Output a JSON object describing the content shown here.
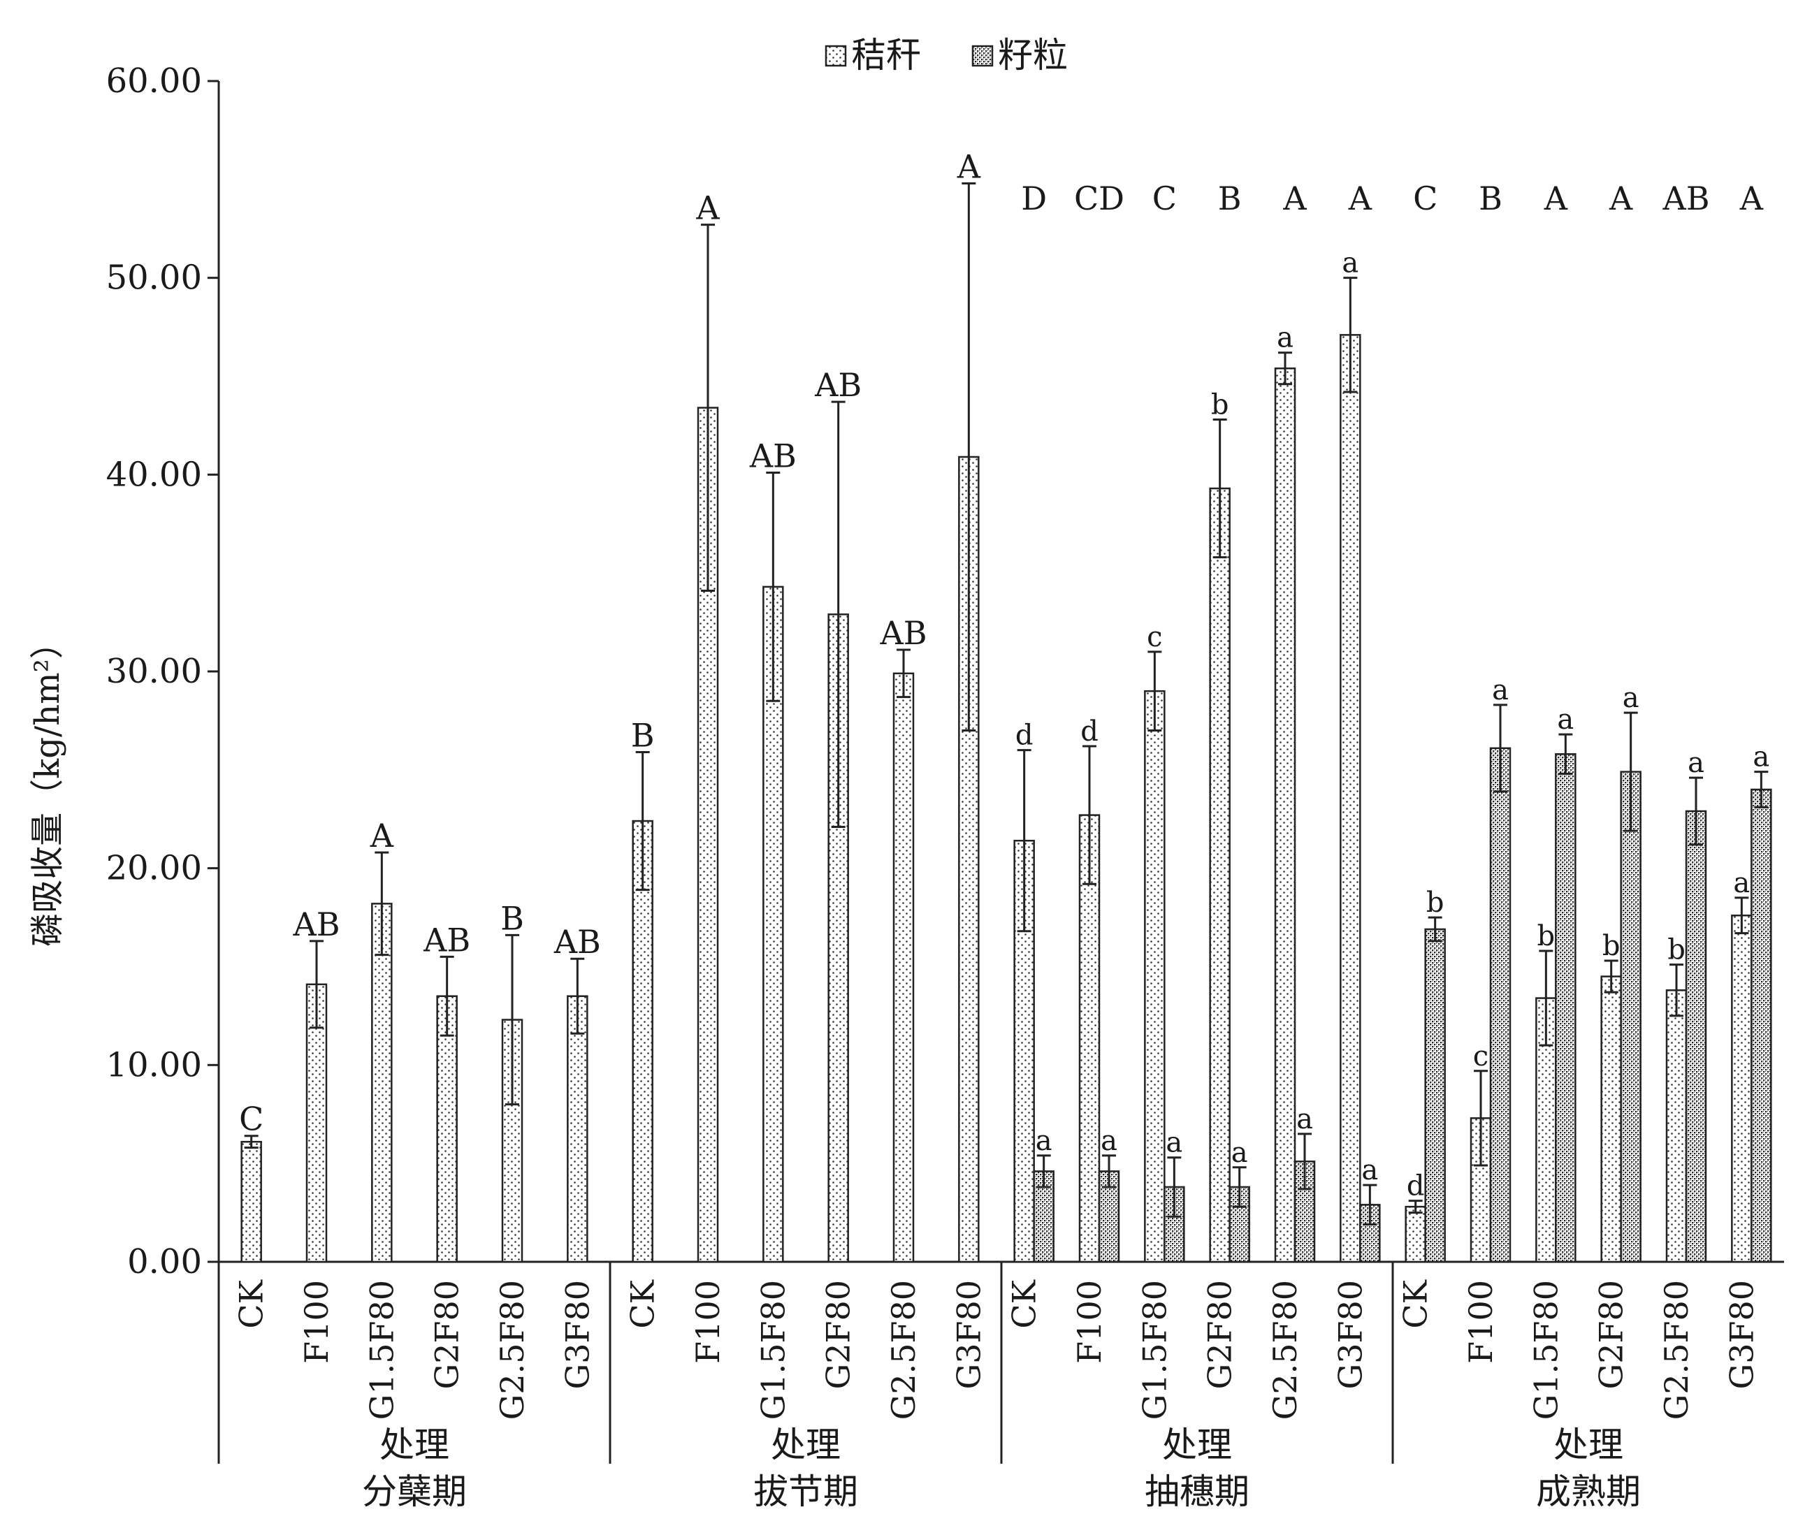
{
  "chart_data": {
    "type": "bar",
    "legend": {
      "position": "top-center",
      "items": [
        {
          "label": "秸秆",
          "pattern": "sparse-dots"
        },
        {
          "label": "籽粒",
          "pattern": "dense-crosshatch"
        }
      ]
    },
    "ylabel": "磷吸收量（kg/hm²）",
    "ylim": [
      0,
      60
    ],
    "yticks": [
      "0.00",
      "10.00",
      "20.00",
      "30.00",
      "40.00",
      "50.00",
      "60.00"
    ],
    "grid": false,
    "groups": [
      {
        "xlabel": "处理",
        "stage": "分蘖期",
        "categories": [
          "CK",
          "F100",
          "G1.5F80",
          "G2F80",
          "G2.5F80",
          "G3F80"
        ],
        "series": [
          {
            "name": "秸秆",
            "values": [
              6.1,
              14.1,
              18.2,
              13.5,
              12.3,
              13.5
            ],
            "errors": [
              0.3,
              2.2,
              2.6,
              2.0,
              4.3,
              1.9
            ],
            "labels": [
              "C",
              "AB",
              "A",
              "AB",
              "B",
              "AB"
            ]
          }
        ],
        "group_labels": []
      },
      {
        "xlabel": "处理",
        "stage": "拔节期",
        "categories": [
          "CK",
          "F100",
          "G1.5F80",
          "G2F80",
          "G2.5F80",
          "G3F80"
        ],
        "series": [
          {
            "name": "秸秆",
            "values": [
              22.4,
              43.4,
              34.3,
              32.9,
              29.9,
              40.9
            ],
            "errors": [
              3.5,
              9.3,
              5.8,
              10.8,
              1.2,
              13.9
            ],
            "labels": [
              "B",
              "A",
              "AB",
              "AB",
              "AB",
              "A"
            ]
          }
        ],
        "group_labels": []
      },
      {
        "xlabel": "处理",
        "stage": "抽穗期",
        "categories": [
          "CK",
          "F100",
          "G1.5F80",
          "G2F80",
          "G2.5F80",
          "G3F80"
        ],
        "series": [
          {
            "name": "秸秆",
            "values": [
              21.4,
              22.7,
              29.0,
              39.3,
              45.4,
              47.1
            ],
            "errors": [
              4.6,
              3.5,
              2.0,
              3.5,
              0.8,
              2.9
            ],
            "labels": [
              "d",
              "d",
              "c",
              "b",
              "a",
              "a"
            ]
          },
          {
            "name": "籽粒",
            "values": [
              4.6,
              4.6,
              3.8,
              3.8,
              5.1,
              2.9
            ],
            "errors": [
              0.8,
              0.8,
              1.5,
              1.0,
              1.4,
              1.0
            ],
            "labels": [
              "a",
              "a",
              "a",
              "a",
              "a",
              "a"
            ]
          }
        ],
        "group_labels": [
          "D",
          "CD",
          "C",
          "B",
          "A",
          "A"
        ]
      },
      {
        "xlabel": "处理",
        "stage": "成熟期",
        "categories": [
          "CK",
          "F100",
          "G1.5F80",
          "G2F80",
          "G2.5F80",
          "G3F80"
        ],
        "series": [
          {
            "name": "秸秆",
            "values": [
              2.8,
              7.3,
              13.4,
              14.5,
              13.8,
              17.6
            ],
            "errors": [
              0.3,
              2.4,
              2.4,
              0.8,
              1.3,
              0.9
            ],
            "labels": [
              "d",
              "c",
              "b",
              "b",
              "b",
              "a"
            ]
          },
          {
            "name": "籽粒",
            "values": [
              16.9,
              26.1,
              25.8,
              24.9,
              22.9,
              24.0
            ],
            "errors": [
              0.6,
              2.2,
              1.0,
              3.0,
              1.7,
              0.9
            ],
            "labels": [
              "b",
              "a",
              "a",
              "a",
              "a",
              "a"
            ]
          }
        ],
        "group_labels": [
          "C",
          "B",
          "A",
          "A",
          "AB",
          "A"
        ]
      }
    ]
  }
}
